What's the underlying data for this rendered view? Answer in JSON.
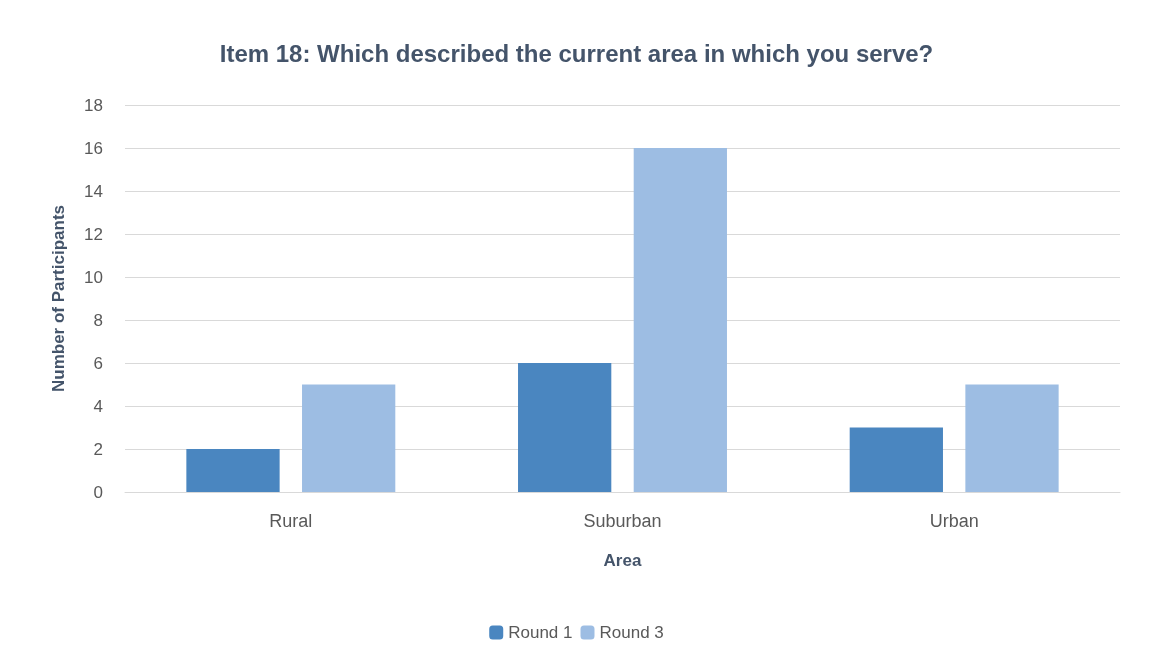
{
  "chart_data": {
    "type": "bar",
    "title": "Item 18: Which described the current area in which you serve?",
    "xlabel": "Area",
    "ylabel": "Number of Participants",
    "categories": [
      "Rural",
      "Suburban",
      "Urban"
    ],
    "series": [
      {
        "name": "Round 1",
        "color": "#4a86c0",
        "values": [
          2,
          6,
          3
        ]
      },
      {
        "name": "Round 3",
        "color": "#9dbde3",
        "values": [
          5,
          16,
          5
        ]
      }
    ],
    "ylim": [
      0,
      18
    ],
    "yticks": [
      0,
      2,
      4,
      6,
      8,
      10,
      12,
      14,
      16,
      18
    ],
    "grid": "y",
    "legend": "bottom"
  }
}
